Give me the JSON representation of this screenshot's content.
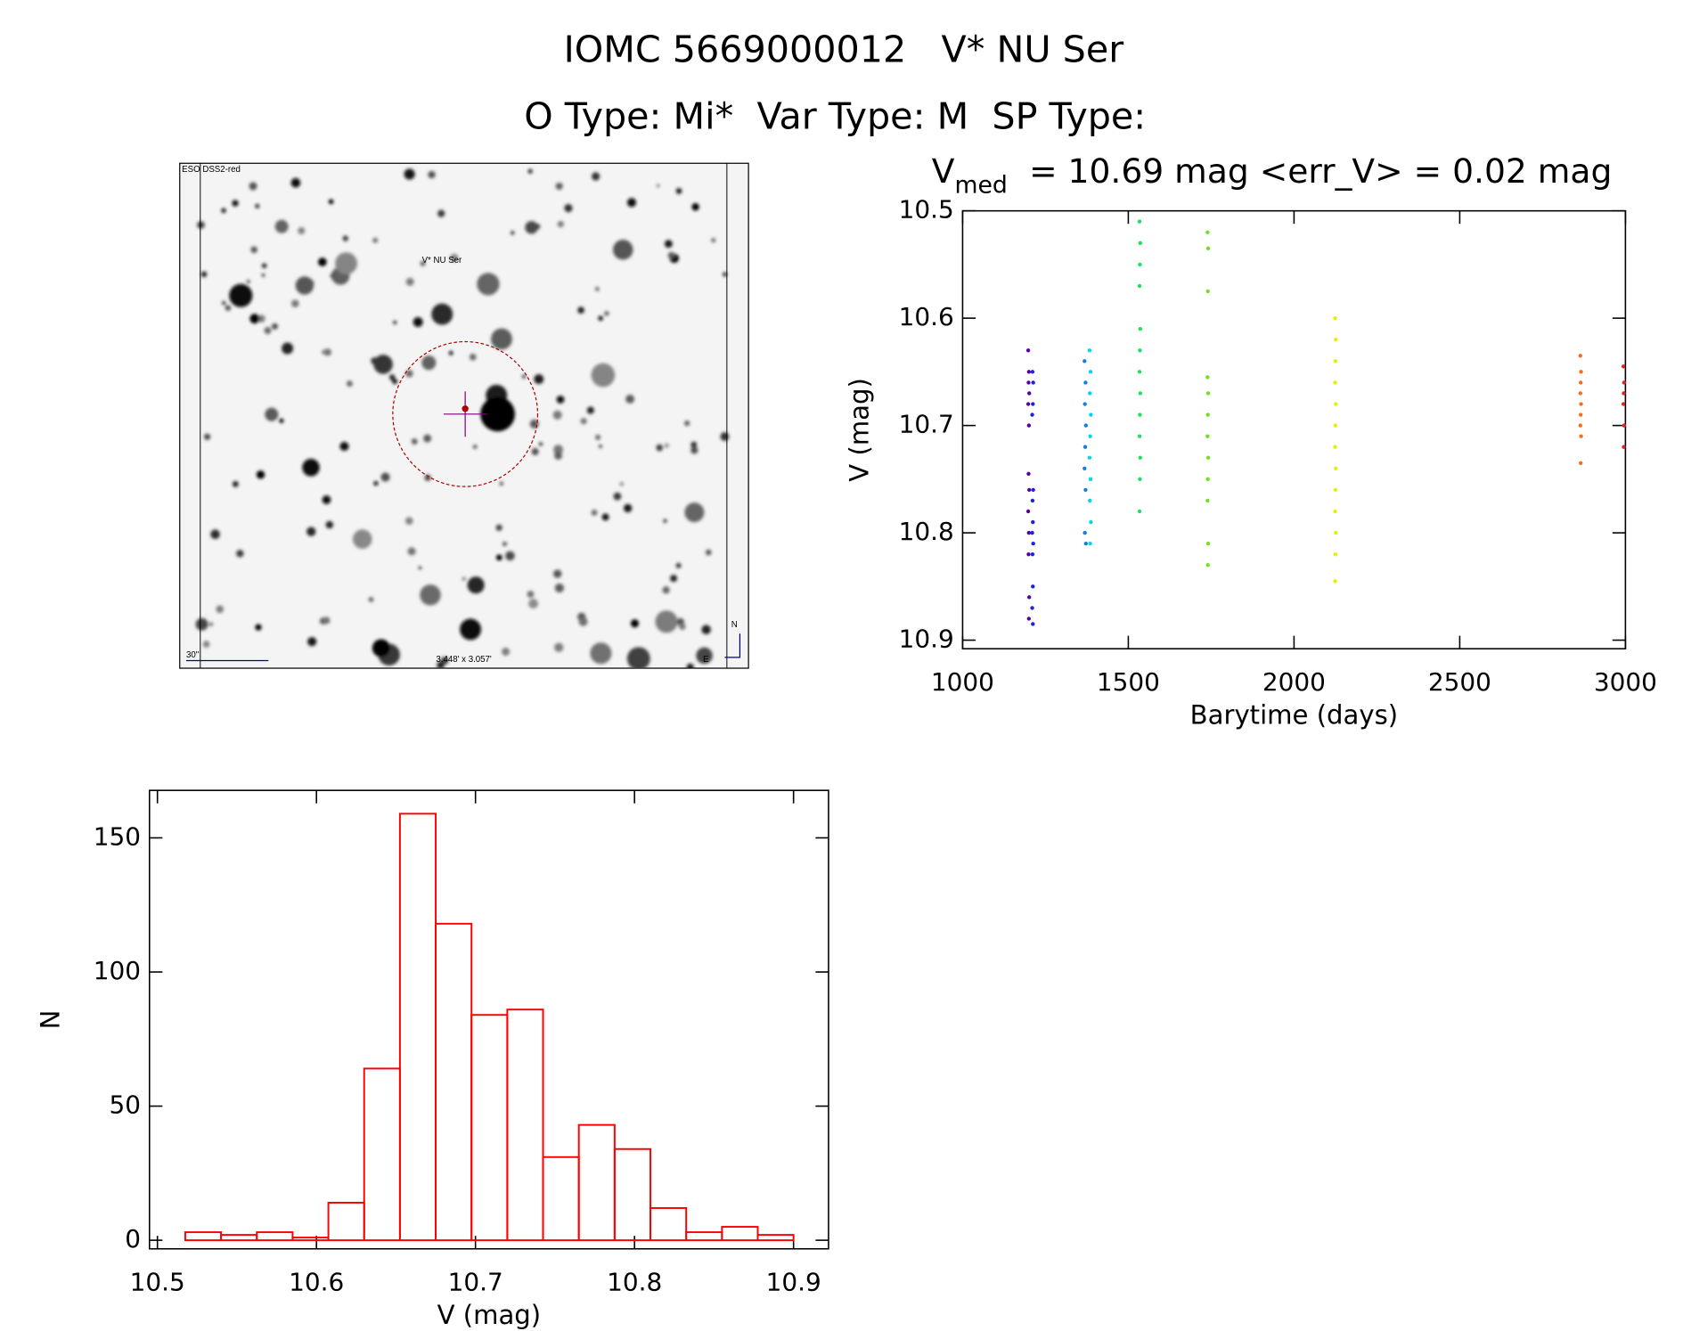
{
  "header": {
    "title": "IOMC 5669000012   V* NU Ser",
    "subtitle": "O Type: Mi*  Var Type: M  SP Type:"
  },
  "image": {
    "survey": "ESO DSS2-red",
    "target": "V* NU Ser",
    "scale": "30\"",
    "fov": "3.448' x 3.057'",
    "north": "N",
    "east": "E"
  },
  "chart_data": [
    {
      "type": "scatter",
      "title_main": "V",
      "title_sub": "med",
      "title_rest": "= 10.69 mag <err_V> = 0.02 mag",
      "x_label": "Barytime (days)",
      "y_label": "V (mag)",
      "xlim": [
        1000,
        3000
      ],
      "xticks": [
        1000,
        1500,
        2000,
        2500,
        3000
      ],
      "ylim": [
        10.5,
        10.908
      ],
      "yticks": [
        10.5,
        10.6,
        10.7,
        10.8,
        10.9
      ],
      "y_inverted": true,
      "series": [
        {
          "color": "#5a00a0",
          "x": [
            1198,
            1200,
            1199,
            1201,
            1198,
            1200,
            1199,
            1201,
            1198,
            1200,
            1199,
            1201,
            1200
          ],
          "y": [
            10.63,
            10.65,
            10.66,
            10.67,
            10.68,
            10.7,
            10.745,
            10.76,
            10.78,
            10.8,
            10.82,
            10.86,
            10.88
          ]
        },
        {
          "color": "#2020e0",
          "x": [
            1211,
            1213,
            1212,
            1210,
            1213,
            1211,
            1212,
            1210,
            1213,
            1211,
            1212,
            1210,
            1212
          ],
          "y": [
            10.65,
            10.66,
            10.68,
            10.69,
            10.76,
            10.77,
            10.79,
            10.8,
            10.81,
            10.82,
            10.85,
            10.87,
            10.885
          ]
        },
        {
          "color": "#1080e0",
          "x": [
            1368,
            1371,
            1369,
            1372,
            1370,
            1368,
            1371,
            1369,
            1372
          ],
          "y": [
            10.64,
            10.66,
            10.68,
            10.7,
            10.72,
            10.74,
            10.76,
            10.8,
            10.81
          ]
        },
        {
          "color": "#00d8e8",
          "x": [
            1383,
            1386,
            1384,
            1387,
            1385,
            1383,
            1386,
            1384,
            1387,
            1385
          ],
          "y": [
            10.63,
            10.65,
            10.67,
            10.69,
            10.71,
            10.73,
            10.75,
            10.77,
            10.79,
            10.81
          ]
        },
        {
          "color": "#20e060",
          "x": [
            1534,
            1536,
            1535,
            1534,
            1536,
            1535,
            1534,
            1536,
            1535,
            1534,
            1536,
            1535,
            1534
          ],
          "y": [
            10.51,
            10.53,
            10.55,
            10.57,
            10.61,
            10.63,
            10.65,
            10.67,
            10.69,
            10.71,
            10.73,
            10.75,
            10.78
          ]
        },
        {
          "color": "#70e020",
          "x": [
            1739,
            1741,
            1740,
            1739,
            1741,
            1740,
            1739,
            1741,
            1740,
            1739,
            1741,
            1740
          ],
          "y": [
            10.52,
            10.535,
            10.575,
            10.655,
            10.67,
            10.69,
            10.71,
            10.73,
            10.75,
            10.77,
            10.81,
            10.83
          ]
        },
        {
          "color": "#e8f000",
          "x": [
            2124,
            2126,
            2125,
            2124,
            2126,
            2125,
            2124,
            2126,
            2125,
            2124,
            2126,
            2125,
            2124
          ],
          "y": [
            10.6,
            10.62,
            10.64,
            10.66,
            10.68,
            10.7,
            10.72,
            10.74,
            10.76,
            10.78,
            10.8,
            10.82,
            10.845
          ]
        },
        {
          "color": "#f07020",
          "x": [
            2864,
            2866,
            2865,
            2864,
            2866,
            2865,
            2864,
            2866,
            2865
          ],
          "y": [
            10.635,
            10.65,
            10.66,
            10.67,
            10.68,
            10.69,
            10.7,
            10.71,
            10.735
          ]
        },
        {
          "color": "#e02020",
          "x": [
            2994,
            2996,
            2995,
            2994,
            2996,
            2995
          ],
          "y": [
            10.645,
            10.66,
            10.67,
            10.68,
            10.7,
            10.72
          ]
        }
      ]
    },
    {
      "type": "histogram",
      "x_label": "V (mag)",
      "y_label": "N",
      "color": "#ff0000",
      "bins": [
        10.5175,
        10.54,
        10.5625,
        10.585,
        10.6075,
        10.63,
        10.6525,
        10.675,
        10.6975,
        10.72,
        10.7425,
        10.765,
        10.7875,
        10.81,
        10.8325,
        10.855,
        10.8775,
        10.9
      ],
      "values": [
        3,
        2,
        3,
        1,
        14,
        64,
        159,
        118,
        84,
        86,
        31,
        43,
        34,
        12,
        3,
        5,
        2
      ],
      "xlim": [
        10.495,
        10.922
      ],
      "xticks": [
        10.5,
        10.6,
        10.7,
        10.8,
        10.9
      ],
      "ylim": [
        -3.2,
        167.7
      ],
      "yticks": [
        0,
        50,
        100,
        150
      ]
    }
  ]
}
